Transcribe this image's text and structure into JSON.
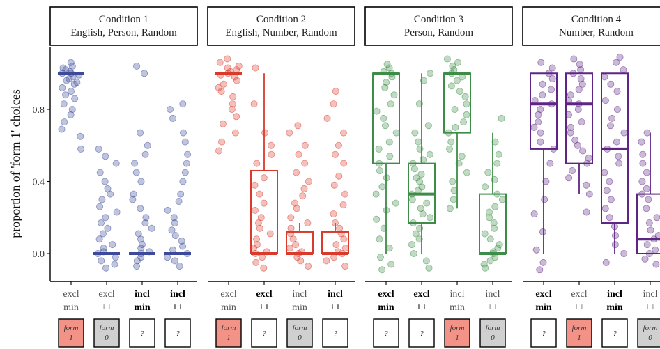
{
  "chart_data": {
    "type": "boxplot-jitter",
    "ylabel": "proportion of 'form 1' choices",
    "ylim": [
      -0.15,
      1.15
    ],
    "yticks": [
      0.0,
      0.4,
      0.8
    ],
    "ytick_labels": [
      "0.0",
      "0.4",
      "0.8"
    ],
    "grid": false,
    "legend": "none",
    "panels": [
      {
        "title": [
          "Condition 1",
          "English, Person, Random"
        ],
        "color": "#3c4a99",
        "groups": [
          {
            "label": [
              "excl",
              "min"
            ],
            "bold": false,
            "form": "form 1",
            "box": {
              "q1": 1.0,
              "median": 1.0,
              "q3": 1.0,
              "lower": 1.0,
              "upper": 1.0
            },
            "points": [
              1.06,
              1.04,
              1.03,
              1.02,
              1.01,
              1.0,
              1.0,
              0.99,
              0.98,
              0.97,
              0.96,
              0.95,
              0.94,
              0.92,
              0.9,
              0.88,
              0.86,
              0.83,
              0.8,
              0.77,
              0.73,
              0.69,
              0.65,
              0.58
            ]
          },
          {
            "label": [
              "excl",
              "++"
            ],
            "bold": false,
            "form": "form 0",
            "box": {
              "q1": 0.0,
              "median": 0.0,
              "q3": 0.0,
              "lower": 0.0,
              "upper": 0.0
            },
            "points": [
              0.58,
              0.54,
              0.5,
              0.45,
              0.4,
              0.36,
              0.33,
              0.3,
              0.26,
              0.23,
              0.2,
              0.17,
              0.14,
              0.11,
              0.08,
              0.05,
              0.03,
              0.01,
              0.0,
              -0.02,
              -0.04,
              -0.06,
              -0.08
            ]
          },
          {
            "label": [
              "incl",
              "min"
            ],
            "bold": true,
            "form": "?",
            "box": {
              "q1": 0.0,
              "median": 0.0,
              "q3": 0.0,
              "lower": 0.0,
              "upper": 0.0
            },
            "points": [
              1.04,
              1.0,
              0.67,
              0.6,
              0.55,
              0.5,
              0.45,
              0.4,
              0.33,
              0.3,
              0.25,
              0.2,
              0.17,
              0.14,
              0.11,
              0.08,
              0.05,
              0.03,
              0.01,
              0.0,
              -0.02,
              -0.04,
              -0.07
            ]
          },
          {
            "label": [
              "incl",
              "++"
            ],
            "bold": true,
            "form": "?",
            "box": {
              "q1": 0.0,
              "median": 0.0,
              "q3": 0.0,
              "lower": 0.0,
              "upper": 0.0
            },
            "points": [
              0.83,
              0.8,
              0.75,
              0.67,
              0.62,
              0.55,
              0.5,
              0.45,
              0.4,
              0.33,
              0.29,
              0.24,
              0.2,
              0.17,
              0.13,
              0.1,
              0.07,
              0.04,
              0.02,
              0.0,
              -0.02,
              -0.04,
              -0.07
            ]
          }
        ]
      },
      {
        "title": [
          "Condition 2",
          "English, Number, Random"
        ],
        "color": "#d93a2b",
        "groups": [
          {
            "label": [
              "excl",
              "min"
            ],
            "bold": false,
            "form": "form 1",
            "box": {
              "q1": 1.0,
              "median": 1.0,
              "q3": 1.0,
              "lower": 1.0,
              "upper": 1.0
            },
            "points": [
              1.08,
              1.06,
              1.04,
              1.03,
              1.02,
              1.01,
              1.0,
              0.99,
              0.98,
              0.96,
              0.94,
              0.92,
              0.9,
              0.87,
              0.83,
              0.8,
              0.76,
              0.72,
              0.67,
              0.62,
              0.57
            ]
          },
          {
            "label": [
              "excl",
              "++"
            ],
            "bold": true,
            "form": "?",
            "box": {
              "q1": 0.0,
              "median": 0.0,
              "q3": 0.46,
              "lower": 0.0,
              "upper": 1.0
            },
            "points": [
              1.03,
              0.83,
              0.67,
              0.6,
              0.55,
              0.5,
              0.42,
              0.38,
              0.33,
              0.28,
              0.24,
              0.2,
              0.17,
              0.14,
              0.11,
              0.08,
              0.05,
              0.03,
              0.01,
              0.0,
              -0.02,
              -0.05,
              -0.08
            ]
          },
          {
            "label": [
              "incl",
              "min"
            ],
            "bold": false,
            "form": "form 0",
            "box": {
              "q1": 0.0,
              "median": 0.0,
              "q3": 0.12,
              "lower": 0.0,
              "upper": 0.17
            },
            "points": [
              0.71,
              0.67,
              0.6,
              0.55,
              0.5,
              0.45,
              0.4,
              0.36,
              0.32,
              0.28,
              0.25,
              0.2,
              0.17,
              0.14,
              0.11,
              0.08,
              0.05,
              0.03,
              0.01,
              0.0,
              -0.02,
              -0.04,
              -0.07
            ]
          },
          {
            "label": [
              "incl",
              "++"
            ],
            "bold": true,
            "form": "?",
            "box": {
              "q1": 0.0,
              "median": 0.0,
              "q3": 0.12,
              "lower": 0.0,
              "upper": 0.17
            },
            "points": [
              0.9,
              0.83,
              0.75,
              0.67,
              0.6,
              0.55,
              0.5,
              0.43,
              0.38,
              0.33,
              0.27,
              0.22,
              0.17,
              0.14,
              0.11,
              0.08,
              0.05,
              0.03,
              0.01,
              0.0,
              -0.02,
              -0.04,
              -0.07
            ]
          }
        ]
      },
      {
        "title": [
          "Condition 3",
          "Person, Random"
        ],
        "color": "#3d8c47",
        "groups": [
          {
            "label": [
              "excl",
              "min"
            ],
            "bold": true,
            "form": "?",
            "box": {
              "q1": 0.5,
              "median": 1.0,
              "q3": 1.0,
              "lower": 0.0,
              "upper": 1.0
            },
            "points": [
              1.05,
              1.03,
              1.01,
              1.0,
              0.98,
              0.95,
              0.92,
              0.88,
              0.83,
              0.79,
              0.75,
              0.71,
              0.67,
              0.62,
              0.58,
              0.54,
              0.5,
              0.46,
              0.42,
              0.37,
              0.33,
              0.28,
              0.24,
              0.19,
              0.14,
              0.08,
              0.03,
              -0.02,
              -0.06,
              -0.09
            ]
          },
          {
            "label": [
              "excl",
              "++"
            ],
            "bold": true,
            "form": "?",
            "box": {
              "q1": 0.17,
              "median": 0.33,
              "q3": 0.5,
              "lower": 0.0,
              "upper": 1.0
            },
            "points": [
              1.0,
              0.96,
              0.83,
              0.71,
              0.67,
              0.62,
              0.58,
              0.55,
              0.52,
              0.5,
              0.47,
              0.44,
              0.42,
              0.4,
              0.37,
              0.35,
              0.33,
              0.3,
              0.28,
              0.25,
              0.22,
              0.2,
              0.17,
              0.14,
              0.11,
              0.08,
              0.05,
              0.0,
              -0.04,
              -0.08
            ]
          },
          {
            "label": [
              "incl",
              "min"
            ],
            "bold": false,
            "form": "form 1",
            "box": {
              "q1": 0.67,
              "median": 1.0,
              "q3": 1.0,
              "lower": 0.25,
              "upper": 1.0
            },
            "points": [
              1.08,
              1.06,
              1.04,
              1.02,
              1.0,
              0.98,
              0.96,
              0.93,
              0.9,
              0.87,
              0.83,
              0.8,
              0.77,
              0.73,
              0.7,
              0.67,
              0.62,
              0.58,
              0.54,
              0.5,
              0.45,
              0.4,
              0.35,
              0.3,
              0.25
            ]
          },
          {
            "label": [
              "incl",
              "++"
            ],
            "bold": false,
            "form": "form 0",
            "box": {
              "q1": 0.0,
              "median": 0.0,
              "q3": 0.33,
              "lower": 0.0,
              "upper": 0.67
            },
            "points": [
              0.75,
              0.62,
              0.55,
              0.5,
              0.45,
              0.41,
              0.37,
              0.33,
              0.3,
              0.26,
              0.23,
              0.2,
              0.17,
              0.14,
              0.11,
              0.08,
              0.05,
              0.03,
              0.01,
              0.0,
              -0.02,
              -0.04,
              -0.06,
              -0.08
            ]
          }
        ]
      },
      {
        "title": [
          "Condition 4",
          "Number, Random"
        ],
        "color": "#5e2585",
        "groups": [
          {
            "label": [
              "excl",
              "min"
            ],
            "bold": true,
            "form": "?",
            "box": {
              "q1": 0.58,
              "median": 0.83,
              "q3": 1.0,
              "lower": 0.0,
              "upper": 1.0
            },
            "points": [
              1.06,
              1.03,
              1.0,
              0.97,
              0.94,
              0.91,
              0.88,
              0.85,
              0.83,
              0.8,
              0.77,
              0.73,
              0.7,
              0.67,
              0.62,
              0.58,
              0.5,
              0.4,
              0.3,
              0.22,
              0.12,
              0.02,
              -0.05,
              -0.09
            ]
          },
          {
            "label": [
              "excl",
              "++"
            ],
            "bold": false,
            "form": "form 1",
            "box": {
              "q1": 0.5,
              "median": 0.83,
              "q3": 1.0,
              "lower": 0.33,
              "upper": 1.0
            },
            "points": [
              1.08,
              1.05,
              1.02,
              1.0,
              0.97,
              0.94,
              0.91,
              0.88,
              0.85,
              0.83,
              0.8,
              0.77,
              0.73,
              0.7,
              0.67,
              0.63,
              0.6,
              0.57,
              0.53,
              0.5,
              0.46,
              0.42,
              0.38,
              0.33,
              0.23
            ]
          },
          {
            "label": [
              "incl",
              "min"
            ],
            "bold": true,
            "form": "?",
            "box": {
              "q1": 0.17,
              "median": 0.58,
              "q3": 1.0,
              "lower": 0.0,
              "upper": 1.0
            },
            "points": [
              1.09,
              1.06,
              1.02,
              0.98,
              0.94,
              0.9,
              0.85,
              0.8,
              0.75,
              0.71,
              0.67,
              0.62,
              0.58,
              0.54,
              0.5,
              0.45,
              0.4,
              0.35,
              0.3,
              0.25,
              0.2,
              0.15,
              0.1,
              0.05,
              0.0,
              -0.05
            ]
          },
          {
            "label": [
              "incl",
              "++"
            ],
            "bold": false,
            "form": "form 0",
            "box": {
              "q1": 0.0,
              "median": 0.08,
              "q3": 0.33,
              "lower": 0.0,
              "upper": 0.67
            },
            "points": [
              0.67,
              0.62,
              0.55,
              0.5,
              0.45,
              0.4,
              0.36,
              0.33,
              0.3,
              0.25,
              0.2,
              0.17,
              0.13,
              0.1,
              0.08,
              0.05,
              0.02,
              0.0,
              -0.03,
              -0.06
            ]
          }
        ]
      }
    ]
  },
  "form_colors": {
    "form 1": "#f39387",
    "form 0": "#d0d0d0",
    "?": "#ffffff"
  }
}
